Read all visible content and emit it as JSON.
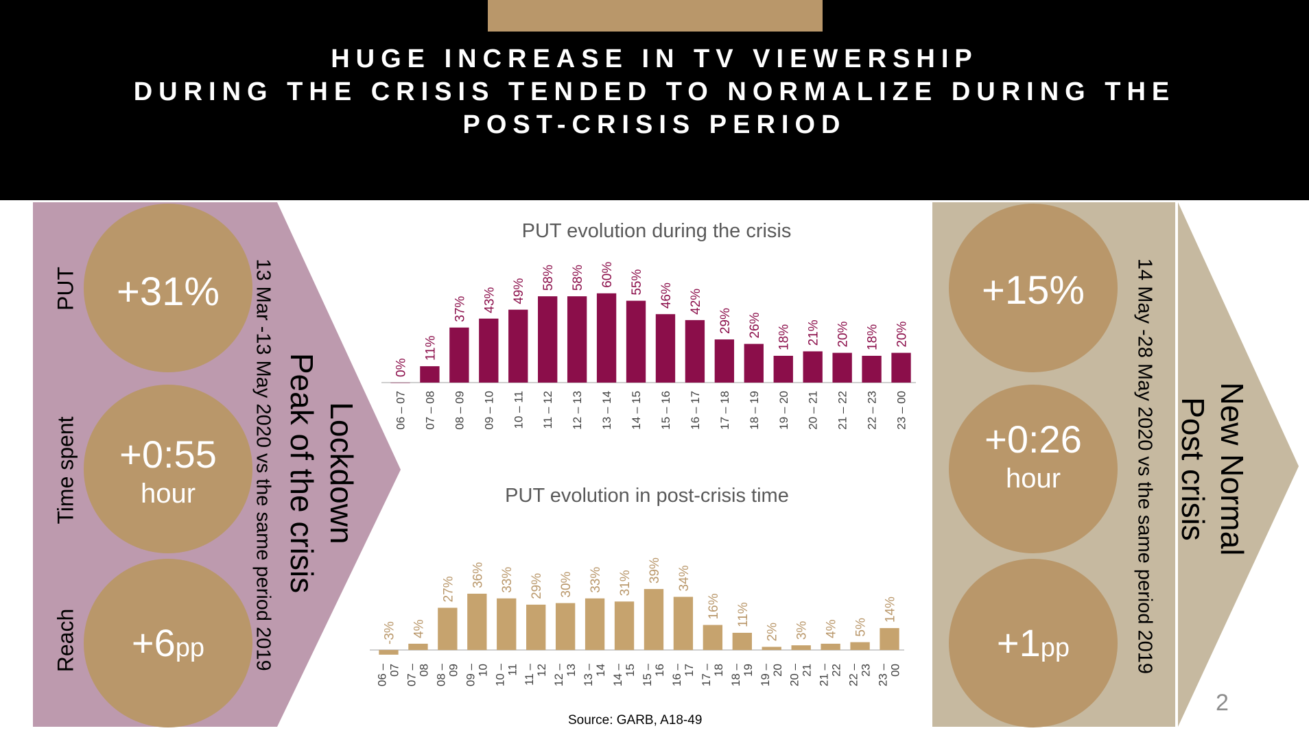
{
  "header": {
    "title_lines": [
      "HUGE INCREASE IN TV VIEWERSHIP",
      "DURING THE CRISIS TENDED TO NORMALIZE DURING THE",
      "POST-CRISIS PERIOD"
    ]
  },
  "left_panel": {
    "metrics": [
      {
        "label": "PUT",
        "value": "+31%",
        "unit": ""
      },
      {
        "label": "Time spent",
        "value": "+0:55",
        "unit": "hour"
      },
      {
        "label": "Reach",
        "value": "+6",
        "unit": "pp"
      }
    ],
    "period": "13 Mar -13 May 2020 vs the same period 2019",
    "arrow_line1": "Lockdown",
    "arrow_line2": "Peak of the crisis",
    "color": "#bd9aae"
  },
  "right_panel": {
    "metrics": [
      {
        "value": "+15%",
        "unit": ""
      },
      {
        "value": "+0:26",
        "unit": "hour"
      },
      {
        "value": "+1",
        "unit": "pp"
      }
    ],
    "period": "14 May -28 May 2020 vs the same period 2019",
    "arrow_line1": "New Normal",
    "arrow_line2": "Post crisis",
    "color": "#c6b9a0"
  },
  "colors": {
    "gold": "#b9976a",
    "crisis_bar": "#8b0e4a",
    "post_bar": "#c6a36e",
    "post_label": "#b9976a"
  },
  "chart_data": [
    {
      "type": "bar",
      "title": "PUT evolution during the crisis",
      "categories": [
        "06 – 07",
        "07 – 08",
        "08 – 09",
        "09 – 10",
        "10 – 11",
        "11 – 12",
        "12 – 13",
        "13 – 14",
        "14 – 15",
        "15 – 16",
        "16 – 17",
        "17 – 18",
        "18 – 19",
        "19 – 20",
        "20 – 21",
        "21 – 22",
        "22 – 23",
        "23 – 00"
      ],
      "values": [
        0,
        11,
        37,
        43,
        49,
        58,
        58,
        60,
        55,
        46,
        42,
        29,
        26,
        18,
        21,
        20,
        18,
        20
      ],
      "value_labels": [
        "0%",
        "11%",
        "37%",
        "43%",
        "49%",
        "58%",
        "58%",
        "60%",
        "55%",
        "46%",
        "42%",
        "29%",
        "26%",
        "18%",
        "21%",
        "20%",
        "18%",
        "20%"
      ],
      "ylim": [
        0,
        60
      ]
    },
    {
      "type": "bar",
      "title": "PUT evolution in post-crisis time",
      "categories": [
        "06 – 07",
        "07 – 08",
        "08 – 09",
        "09 – 10",
        "10 – 11",
        "11 – 12",
        "12 – 13",
        "13 – 14",
        "14 – 15",
        "15 – 16",
        "16 – 17",
        "17 – 18",
        "18 – 19",
        "19 – 20",
        "20 – 21",
        "21 – 22",
        "22 – 23",
        "23 – 00"
      ],
      "values": [
        -3,
        4,
        27,
        36,
        33,
        29,
        30,
        33,
        31,
        39,
        34,
        16,
        11,
        2,
        3,
        4,
        5,
        14
      ],
      "value_labels": [
        "-3%",
        "4%",
        "27%",
        "36%",
        "33%",
        "29%",
        "30%",
        "33%",
        "31%",
        "39%",
        "34%",
        "16%",
        "11%",
        "2%",
        "3%",
        "4%",
        "5%",
        "14%"
      ],
      "ylim": [
        -3,
        39
      ]
    }
  ],
  "source": "Source: GARB, A18-49",
  "page_number": "2"
}
